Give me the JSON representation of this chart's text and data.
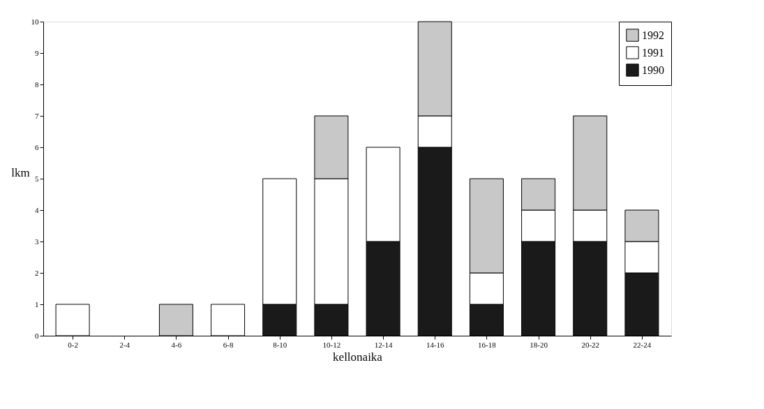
{
  "chart_data": {
    "type": "bar",
    "stacked": true,
    "xlabel": "kellonaika",
    "ylabel": "lkm",
    "categories": [
      "0-2",
      "2-4",
      "4-6",
      "6-8",
      "8-10",
      "10-12",
      "12-14",
      "14-16",
      "16-18",
      "18-20",
      "20-22",
      "22-24"
    ],
    "series": [
      {
        "name": "1990",
        "color": "#1a1a1a",
        "values": [
          0,
          0,
          0,
          0,
          1,
          1,
          3,
          6,
          1,
          3,
          3,
          2
        ]
      },
      {
        "name": "1991",
        "color": "#ffffff",
        "values": [
          1,
          0,
          0,
          1,
          4,
          4,
          3,
          1,
          1,
          1,
          1,
          1
        ]
      },
      {
        "name": "1992",
        "color": "#c8c8c8",
        "values": [
          0,
          0,
          1,
          0,
          0,
          2,
          0,
          3,
          3,
          1,
          3,
          1
        ]
      }
    ],
    "ylim": [
      0,
      10
    ],
    "yticks": [
      0,
      1,
      2,
      3,
      4,
      5,
      6,
      7,
      8,
      9,
      10
    ],
    "grid": false,
    "legend": "top right"
  }
}
